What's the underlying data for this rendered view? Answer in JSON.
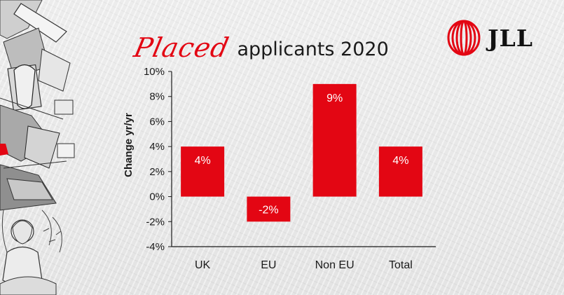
{
  "title": {
    "script_word": "Placed",
    "rest": "applicants 2020"
  },
  "brand": {
    "name": "JLL",
    "color": "#e30613"
  },
  "icons": {
    "logo": "jll-logo-icon",
    "collage": "decorative-collage"
  },
  "chart_data": {
    "type": "bar",
    "title": "Placed applicants 2020",
    "categories": [
      "UK",
      "EU",
      "Non EU",
      "Total"
    ],
    "values": [
      4,
      -2,
      9,
      4
    ],
    "data_labels": [
      "4%",
      "-2%",
      "9%",
      "4%"
    ],
    "ylabel": "Change yr/yr",
    "xlabel": "",
    "ylim": [
      -4,
      10
    ],
    "yticks": [
      10,
      8,
      6,
      4,
      2,
      0,
      -2,
      -4
    ],
    "ytick_labels": [
      "10%",
      "8%",
      "6%",
      "4%",
      "2%",
      "0%",
      "-2%",
      "-4%"
    ],
    "bar_color": "#e30613",
    "grid": false,
    "legend": "none"
  }
}
